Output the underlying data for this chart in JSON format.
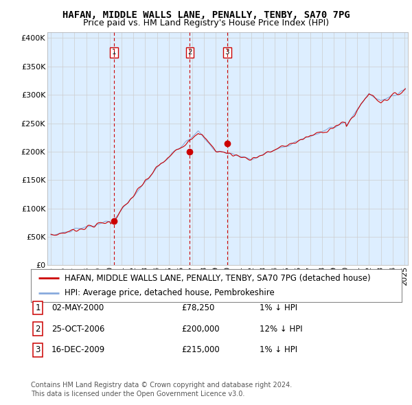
{
  "title": "HAFAN, MIDDLE WALLS LANE, PENALLY, TENBY, SA70 7PG",
  "subtitle": "Price paid vs. HM Land Registry's House Price Index (HPI)",
  "ylabel_ticks": [
    "£0",
    "£50K",
    "£100K",
    "£150K",
    "£200K",
    "£250K",
    "£300K",
    "£350K",
    "£400K"
  ],
  "ytick_vals": [
    0,
    50000,
    100000,
    150000,
    200000,
    250000,
    300000,
    350000,
    400000
  ],
  "ylim": [
    0,
    410000
  ],
  "xlim_start": 1994.7,
  "xlim_end": 2025.3,
  "xtick_years": [
    1995,
    1996,
    1997,
    1998,
    1999,
    2000,
    2001,
    2002,
    2003,
    2004,
    2005,
    2006,
    2007,
    2008,
    2009,
    2010,
    2011,
    2012,
    2013,
    2014,
    2015,
    2016,
    2017,
    2018,
    2019,
    2020,
    2021,
    2022,
    2023,
    2024,
    2025
  ],
  "property_color": "#cc0000",
  "hpi_color": "#88aadd",
  "vline_color": "#cc0000",
  "plot_bg_color": "#ddeeff",
  "sales": [
    {
      "year": 2000.35,
      "price": 78250,
      "label": "1"
    },
    {
      "year": 2006.79,
      "price": 200000,
      "label": "2"
    },
    {
      "year": 2009.96,
      "price": 215000,
      "label": "3"
    }
  ],
  "legend_property": "HAFAN, MIDDLE WALLS LANE, PENALLY, TENBY, SA70 7PG (detached house)",
  "legend_hpi": "HPI: Average price, detached house, Pembrokeshire",
  "table_data": [
    {
      "num": "1",
      "date": "02-MAY-2000",
      "price": "£78,250",
      "change": "1% ↓ HPI"
    },
    {
      "num": "2",
      "date": "25-OCT-2006",
      "price": "£200,000",
      "change": "12% ↓ HPI"
    },
    {
      "num": "3",
      "date": "16-DEC-2009",
      "price": "£215,000",
      "change": "1% ↓ HPI"
    }
  ],
  "footer": "Contains HM Land Registry data © Crown copyright and database right 2024.\nThis data is licensed under the Open Government Licence v3.0.",
  "bg_color": "#ffffff",
  "grid_color": "#cccccc",
  "title_fontsize": 10,
  "subtitle_fontsize": 9,
  "tick_fontsize": 8,
  "legend_fontsize": 8.5,
  "table_fontsize": 8.5,
  "footer_fontsize": 7
}
